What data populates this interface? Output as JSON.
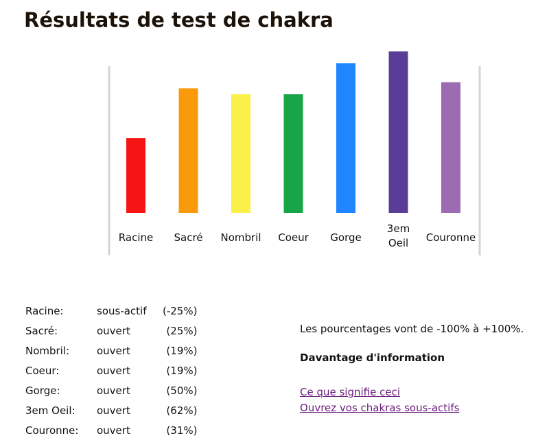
{
  "page": {
    "title": "Résultats de test de chakra"
  },
  "chart_data": {
    "type": "bar",
    "categories": [
      "Racine",
      "Sacré",
      "Nombril",
      "Coeur",
      "Gorge",
      "3em Oeil",
      "Couronne"
    ],
    "category_lines": [
      [
        "Racine"
      ],
      [
        "Sacré"
      ],
      [
        "Nombril"
      ],
      [
        "Coeur"
      ],
      [
        "Gorge"
      ],
      [
        "3em",
        "Oeil"
      ],
      [
        "Couronne"
      ]
    ],
    "values": [
      -25,
      25,
      19,
      19,
      50,
      62,
      31
    ],
    "ylim": [
      -100,
      100
    ],
    "colors": [
      "#f51515",
      "#f99a0d",
      "#fbf04a",
      "#17a547",
      "#2086ff",
      "#5a3d97",
      "#9c6bb1"
    ],
    "grid": false,
    "axes_visible": false,
    "title": "",
    "xlabel": "",
    "ylabel": ""
  },
  "results": {
    "rows": [
      {
        "name": "Racine:",
        "state": "sous-actif",
        "percent": "(-25%)"
      },
      {
        "name": "Sacré:",
        "state": "ouvert",
        "percent": "(25%)"
      },
      {
        "name": "Nombril:",
        "state": "ouvert",
        "percent": "(19%)"
      },
      {
        "name": "Coeur:",
        "state": "ouvert",
        "percent": "(19%)"
      },
      {
        "name": "Gorge:",
        "state": "ouvert",
        "percent": "(50%)"
      },
      {
        "name": "3em Oeil:",
        "state": "ouvert",
        "percent": "(62%)"
      },
      {
        "name": "Couronne:",
        "state": "ouvert",
        "percent": "(31%)"
      }
    ]
  },
  "info": {
    "range_note": "Les pourcentages vont de -100% à +100%.",
    "more_title": "Davantage d'information",
    "links": [
      "Ce que signifie ceci",
      "Ouvrez vos chakras sous-actifs"
    ]
  }
}
